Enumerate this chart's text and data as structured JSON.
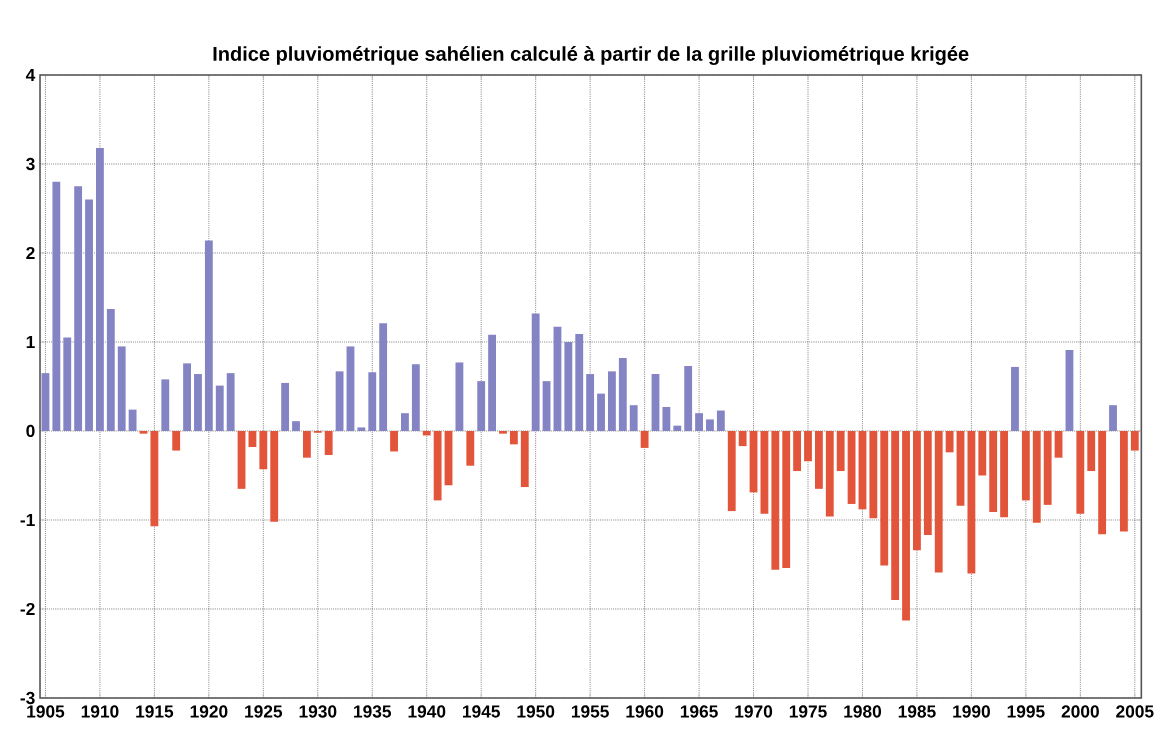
{
  "chart_data": {
    "type": "bar",
    "title": "Indice pluviométrique sahélien calculé à partir de la grille pluviométrique krigée",
    "x": [
      1905,
      1906,
      1907,
      1908,
      1909,
      1910,
      1911,
      1912,
      1913,
      1914,
      1915,
      1916,
      1917,
      1918,
      1919,
      1920,
      1921,
      1922,
      1923,
      1924,
      1925,
      1926,
      1927,
      1928,
      1929,
      1930,
      1931,
      1932,
      1933,
      1934,
      1935,
      1936,
      1937,
      1938,
      1939,
      1940,
      1941,
      1942,
      1943,
      1944,
      1945,
      1946,
      1947,
      1948,
      1949,
      1950,
      1951,
      1952,
      1953,
      1954,
      1955,
      1956,
      1957,
      1958,
      1959,
      1960,
      1961,
      1962,
      1963,
      1964,
      1965,
      1966,
      1967,
      1968,
      1969,
      1970,
      1971,
      1972,
      1973,
      1974,
      1975,
      1976,
      1977,
      1978,
      1979,
      1980,
      1981,
      1982,
      1983,
      1984,
      1985,
      1986,
      1987,
      1988,
      1989,
      1990,
      1991,
      1992,
      1993,
      1994,
      1995,
      1996,
      1997,
      1998,
      1999,
      2000,
      2001,
      2002,
      2003,
      2004,
      2005
    ],
    "values": [
      0.65,
      2.8,
      1.05,
      2.75,
      2.6,
      3.18,
      1.37,
      0.95,
      0.24,
      -0.03,
      -1.07,
      0.58,
      -0.22,
      0.76,
      0.64,
      2.14,
      0.51,
      0.65,
      -0.65,
      -0.18,
      -0.43,
      -1.02,
      0.54,
      0.11,
      -0.3,
      -0.02,
      -0.27,
      0.67,
      0.95,
      0.04,
      0.66,
      1.21,
      -0.23,
      0.2,
      0.75,
      -0.05,
      -0.78,
      -0.61,
      0.77,
      -0.39,
      0.56,
      1.08,
      -0.03,
      -0.15,
      -0.63,
      1.32,
      0.56,
      1.17,
      1.0,
      1.09,
      0.64,
      0.42,
      0.67,
      0.82,
      0.29,
      -0.19,
      0.64,
      0.27,
      0.06,
      0.73,
      0.2,
      0.13,
      0.23,
      -0.9,
      -0.17,
      -0.69,
      -0.93,
      -1.56,
      -1.54,
      -0.45,
      -0.34,
      -0.65,
      -0.96,
      -0.45,
      -0.82,
      -0.88,
      -0.98,
      -1.51,
      -1.9,
      -2.13,
      -1.34,
      -1.17,
      -1.59,
      -0.24,
      -0.84,
      -1.6,
      -0.5,
      -0.91,
      -0.97,
      0.72,
      -0.78,
      -1.03,
      -0.83,
      -0.3,
      0.91,
      -0.93,
      -0.45,
      -1.16,
      0.29,
      -1.13,
      -0.22
    ],
    "colors": [
      "#8484c4",
      "#8484c4",
      "#8484c4",
      "#8484c4",
      "#8484c4",
      "#8484c4",
      "#8484c4",
      "#8484c4",
      "#8484c4",
      "#e2553a",
      "#e2553a",
      "#8484c4",
      "#e2553a",
      "#8484c4",
      "#8484c4",
      "#8484c4",
      "#8484c4",
      "#8484c4",
      "#e2553a",
      "#e2553a",
      "#e2553a",
      "#e2553a",
      "#8484c4",
      "#8484c4",
      "#e2553a",
      "#e2553a",
      "#e2553a",
      "#8484c4",
      "#8484c4",
      "#8484c4",
      "#8484c4",
      "#8484c4",
      "#e2553a",
      "#8484c4",
      "#8484c4",
      "#e2553a",
      "#e2553a",
      "#e2553a",
      "#8484c4",
      "#e2553a",
      "#8484c4",
      "#8484c4",
      "#e2553a",
      "#e2553a",
      "#e2553a",
      "#8484c4",
      "#8484c4",
      "#8484c4",
      "#8484c4",
      "#8484c4",
      "#8484c4",
      "#8484c4",
      "#8484c4",
      "#8484c4",
      "#8484c4",
      "#e2553a",
      "#8484c4",
      "#8484c4",
      "#8484c4",
      "#8484c4",
      "#8484c4",
      "#8484c4",
      "#8484c4",
      "#e2553a",
      "#e2553a",
      "#e2553a",
      "#e2553a",
      "#e2553a",
      "#e2553a",
      "#e2553a",
      "#e2553a",
      "#e2553a",
      "#e2553a",
      "#e2553a",
      "#e2553a",
      "#e2553a",
      "#e2553a",
      "#e2553a",
      "#e2553a",
      "#e2553a",
      "#e2553a",
      "#e2553a",
      "#e2553a",
      "#e2553a",
      "#e2553a",
      "#e2553a",
      "#e2553a",
      "#e2553a",
      "#e2553a",
      "#8484c4",
      "#e2553a",
      "#e2553a",
      "#e2553a",
      "#e2553a",
      "#8484c4",
      "#e2553a",
      "#e2553a",
      "#e2553a",
      "#8484c4",
      "#e2553a",
      "#e2553a"
    ],
    "xlim": [
      1904.5,
      2005.6
    ],
    "xticks": [
      1905,
      1910,
      1915,
      1920,
      1925,
      1930,
      1935,
      1940,
      1945,
      1950,
      1955,
      1960,
      1965,
      1970,
      1975,
      1980,
      1985,
      1990,
      1995,
      2000,
      2005
    ],
    "ylim": [
      -3,
      4
    ],
    "yticks": [
      -3,
      -2,
      -1,
      0,
      1,
      2,
      3,
      4
    ],
    "grid": true
  }
}
